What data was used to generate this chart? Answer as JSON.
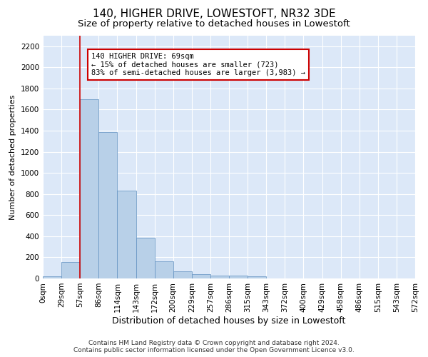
{
  "title": "140, HIGHER DRIVE, LOWESTOFT, NR32 3DE",
  "subtitle": "Size of property relative to detached houses in Lowestoft",
  "xlabel": "Distribution of detached houses by size in Lowestoft",
  "ylabel": "Number of detached properties",
  "bar_values": [
    20,
    155,
    1700,
    1390,
    835,
    385,
    165,
    65,
    40,
    30,
    30,
    20,
    0,
    0,
    0,
    0,
    0,
    0,
    0,
    0
  ],
  "bar_labels": [
    "0sqm",
    "29sqm",
    "57sqm",
    "86sqm",
    "114sqm",
    "143sqm",
    "172sqm",
    "200sqm",
    "229sqm",
    "257sqm",
    "286sqm",
    "315sqm",
    "343sqm",
    "372sqm",
    "400sqm",
    "429sqm",
    "458sqm",
    "486sqm",
    "515sqm",
    "543sqm",
    "572sqm"
  ],
  "bar_color": "#b8d0e8",
  "bar_edge_color": "#6090c0",
  "background_color": "#dce8f8",
  "plot_bg_color": "#dce8f8",
  "grid_color": "#ffffff",
  "ylim": [
    0,
    2300
  ],
  "yticks": [
    0,
    200,
    400,
    600,
    800,
    1000,
    1200,
    1400,
    1600,
    1800,
    2000,
    2200
  ],
  "property_line_color": "#cc0000",
  "annotation_text": "140 HIGHER DRIVE: 69sqm\n← 15% of detached houses are smaller (723)\n83% of semi-detached houses are larger (3,983) →",
  "annotation_box_color": "#ffffff",
  "annotation_box_edge": "#cc0000",
  "footnote": "Contains HM Land Registry data © Crown copyright and database right 2024.\nContains public sector information licensed under the Open Government Licence v3.0.",
  "title_fontsize": 11,
  "subtitle_fontsize": 9.5,
  "xlabel_fontsize": 9,
  "ylabel_fontsize": 8,
  "tick_fontsize": 7.5,
  "annot_fontsize": 7.5
}
